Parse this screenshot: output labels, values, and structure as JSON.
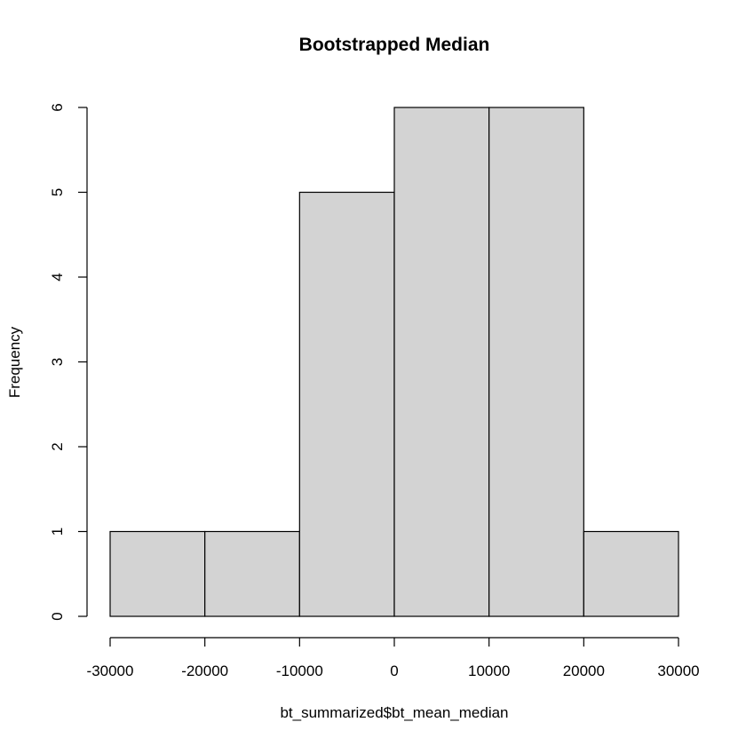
{
  "chart_data": {
    "type": "bar",
    "title": "Bootstrapped Median",
    "xlabel": "bt_summarized$bt_mean_median",
    "ylabel": "Frequency",
    "bins": [
      {
        "start": -30000,
        "end": -20000,
        "count": 1
      },
      {
        "start": -20000,
        "end": -10000,
        "count": 1
      },
      {
        "start": -10000,
        "end": 0,
        "count": 5
      },
      {
        "start": 0,
        "end": 10000,
        "count": 6
      },
      {
        "start": 10000,
        "end": 20000,
        "count": 6
      },
      {
        "start": 20000,
        "end": 30000,
        "count": 1
      }
    ],
    "xlim": [
      -30000,
      30000
    ],
    "ylim": [
      0,
      6
    ],
    "x_ticks": [
      -30000,
      -20000,
      -10000,
      0,
      10000,
      20000,
      30000
    ],
    "y_ticks": [
      0,
      1,
      2,
      3,
      4,
      5,
      6
    ],
    "bar_color": "#d3d3d3",
    "grid": false,
    "legend": "none"
  }
}
